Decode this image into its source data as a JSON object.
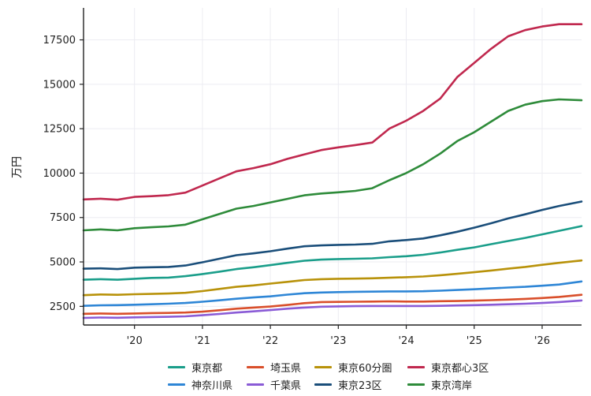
{
  "chart_data": {
    "type": "line",
    "title": "",
    "xlabel": "",
    "ylabel": "万円",
    "x_tick_labels": [
      "'20",
      "'21",
      "'22",
      "'23",
      "'24",
      "'25",
      "'26"
    ],
    "x_ticks": [
      2020,
      2021,
      2022,
      2023,
      2024,
      2025,
      2026
    ],
    "xlim": [
      2019.25,
      2026.58
    ],
    "y_ticks": [
      2500,
      5000,
      7500,
      10000,
      12500,
      15000,
      17500
    ],
    "y_tick_labels": [
      "2500",
      "5000",
      "7500",
      "10000",
      "12500",
      "15000",
      "17500"
    ],
    "ylim": [
      1450,
      19300
    ],
    "grid": true,
    "legend_position": "bottom-center",
    "x": [
      2019.25,
      2019.5,
      2019.75,
      2020.0,
      2020.25,
      2020.5,
      2020.75,
      2021.0,
      2021.25,
      2021.5,
      2021.75,
      2022.0,
      2022.25,
      2022.5,
      2022.75,
      2023.0,
      2023.25,
      2023.5,
      2023.75,
      2024.0,
      2024.25,
      2024.5,
      2024.75,
      2025.0,
      2025.25,
      2025.5,
      2025.75,
      2026.0,
      2026.25,
      2026.58
    ],
    "series": [
      {
        "name": "東京都",
        "color": "#1a9e8a",
        "values": [
          4000,
          4030,
          4000,
          4050,
          4100,
          4120,
          4200,
          4320,
          4450,
          4600,
          4700,
          4820,
          4950,
          5070,
          5130,
          5160,
          5180,
          5200,
          5270,
          5320,
          5400,
          5530,
          5680,
          5820,
          6000,
          6180,
          6350,
          6550,
          6750,
          7020
        ]
      },
      {
        "name": "神奈川県",
        "color": "#2e86d6",
        "values": [
          2530,
          2560,
          2570,
          2590,
          2620,
          2650,
          2690,
          2760,
          2840,
          2930,
          3000,
          3060,
          3160,
          3240,
          3280,
          3300,
          3320,
          3330,
          3340,
          3340,
          3350,
          3380,
          3420,
          3460,
          3510,
          3560,
          3600,
          3660,
          3730,
          3900
        ]
      },
      {
        "name": "埼玉県",
        "color": "#d94f2b",
        "values": [
          2080,
          2100,
          2080,
          2100,
          2120,
          2130,
          2150,
          2200,
          2280,
          2370,
          2430,
          2490,
          2580,
          2680,
          2740,
          2750,
          2760,
          2770,
          2780,
          2770,
          2770,
          2790,
          2800,
          2820,
          2850,
          2880,
          2920,
          2970,
          3030,
          3150
        ]
      },
      {
        "name": "千葉県",
        "color": "#8a5bd6",
        "values": [
          1850,
          1870,
          1860,
          1880,
          1900,
          1910,
          1940,
          2000,
          2070,
          2150,
          2220,
          2290,
          2370,
          2430,
          2480,
          2500,
          2510,
          2520,
          2520,
          2520,
          2520,
          2530,
          2550,
          2570,
          2590,
          2620,
          2650,
          2690,
          2740,
          2830
        ]
      },
      {
        "name": "東京60分圏",
        "color": "#b8920a",
        "values": [
          3130,
          3170,
          3150,
          3180,
          3200,
          3220,
          3260,
          3360,
          3480,
          3600,
          3680,
          3780,
          3880,
          3980,
          4030,
          4050,
          4060,
          4080,
          4110,
          4140,
          4180,
          4250,
          4330,
          4420,
          4520,
          4620,
          4720,
          4840,
          4950,
          5080
        ]
      },
      {
        "name": "東京23区",
        "color": "#1a4e7a",
        "values": [
          4620,
          4640,
          4600,
          4680,
          4700,
          4720,
          4800,
          4980,
          5180,
          5380,
          5480,
          5600,
          5750,
          5880,
          5930,
          5960,
          5980,
          6020,
          6160,
          6230,
          6320,
          6500,
          6700,
          6930,
          7180,
          7450,
          7680,
          7930,
          8150,
          8400
        ]
      },
      {
        "name": "東京都心3区",
        "color": "#c0284e",
        "values": [
          8520,
          8560,
          8500,
          8660,
          8700,
          8760,
          8900,
          9300,
          9700,
          10100,
          10280,
          10500,
          10800,
          11050,
          11300,
          11450,
          11580,
          11720,
          12500,
          12950,
          13500,
          14200,
          15400,
          16200,
          17000,
          17700,
          18050,
          18250,
          18380,
          18380
        ]
      },
      {
        "name": "東京湾岸",
        "color": "#2e8b3a",
        "values": [
          6780,
          6830,
          6780,
          6900,
          6950,
          7000,
          7100,
          7400,
          7700,
          8000,
          8150,
          8350,
          8550,
          8750,
          8850,
          8920,
          9000,
          9150,
          9600,
          10000,
          10500,
          11100,
          11800,
          12300,
          12900,
          13500,
          13850,
          14050,
          14150,
          14100
        ]
      }
    ]
  }
}
